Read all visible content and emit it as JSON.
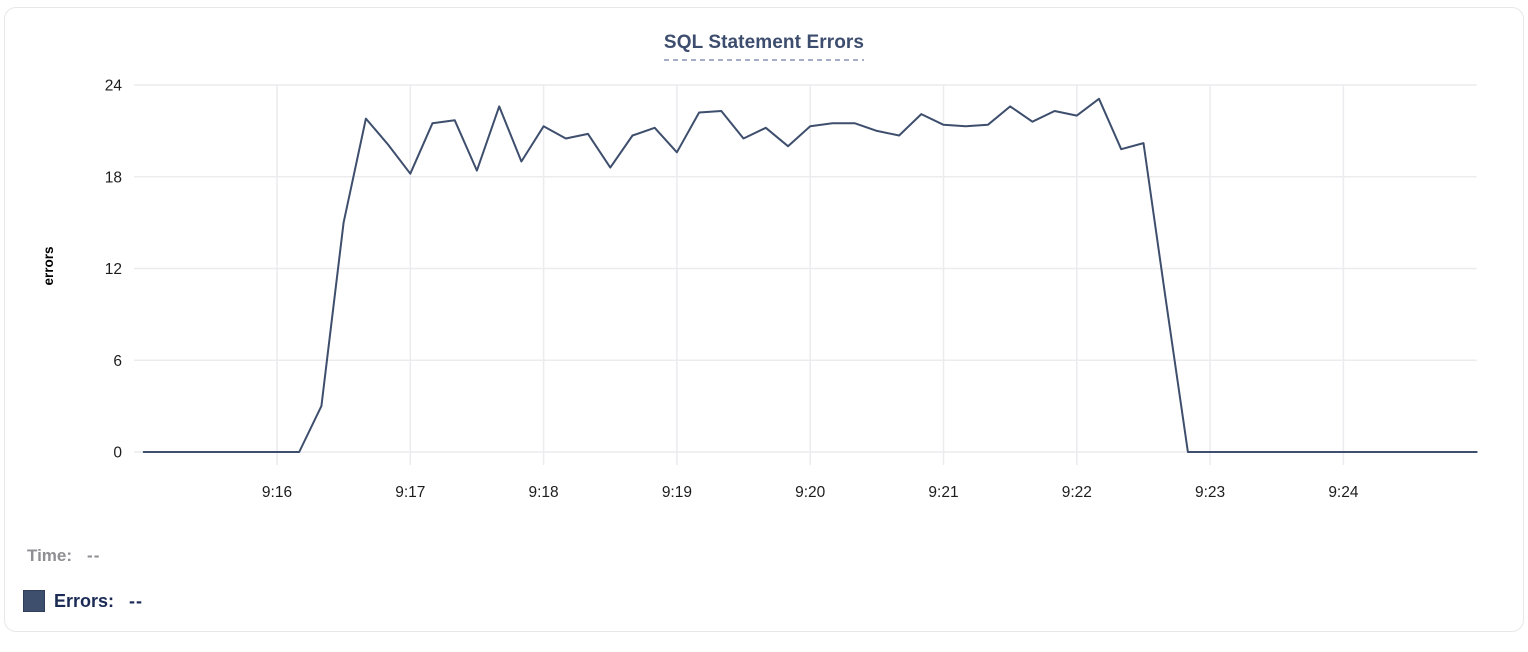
{
  "header": {
    "title": "SQL Statement Errors"
  },
  "legend": {
    "time_label": "Time:",
    "time_value": "--",
    "errors_label": "Errors:",
    "errors_value": "--"
  },
  "colors": {
    "series": "#3e4e6d",
    "title": "#3d4d6e",
    "title_underline": "#a6aec7",
    "legend_time": "#8e8e93",
    "legend_errors": "#1b2b55",
    "grid": "#ececef",
    "tick_text": "#1d1d1f",
    "card_border": "#e7e7ea"
  },
  "chart_data": {
    "type": "line",
    "title": "SQL Statement Errors",
    "xlabel": "",
    "ylabel": "errors",
    "ylim": [
      0,
      24
    ],
    "yticks": [
      0,
      6,
      12,
      18,
      24
    ],
    "xticks": [
      "9:16",
      "9:17",
      "9:18",
      "9:19",
      "9:20",
      "9:21",
      "9:22",
      "9:23",
      "9:24"
    ],
    "grid": true,
    "legend_position": "bottom-left",
    "x_start": "9:15:00",
    "x_end": "9:25:00",
    "x_step_seconds": 10,
    "series": [
      {
        "name": "Errors",
        "color": "#3e4e6d",
        "values": [
          0,
          0,
          0,
          0,
          0,
          0,
          0,
          0,
          3,
          15,
          21.8,
          20.1,
          18.2,
          21.5,
          21.7,
          18.4,
          22.6,
          19,
          21.3,
          20.5,
          20.8,
          18.6,
          20.7,
          21.2,
          19.6,
          22.2,
          22.3,
          20.5,
          21.2,
          20,
          21.3,
          21.5,
          21.5,
          21,
          20.7,
          22.1,
          21.4,
          21.3,
          21.4,
          22.6,
          21.6,
          22.3,
          22,
          23.1,
          19.8,
          20.2,
          10,
          0,
          0,
          0,
          0,
          0,
          0,
          0,
          0,
          0,
          0,
          0,
          0,
          0,
          0
        ]
      }
    ]
  }
}
